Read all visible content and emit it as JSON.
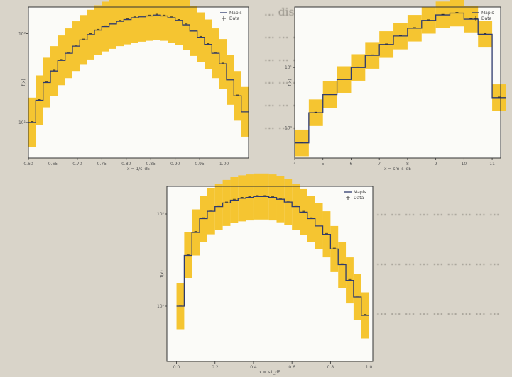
{
  "background_text": {
    "lines": [
      "... distributions.",
      "... ... ... ... ... ... ... ... ...",
      "... ... ... ... ... ... ... ... ...",
      "... ... ... ... ... ... ... ... ...",
      "... ... ... ... ... ... ... ... ...",
      "... ... ... ... ... ... ... ... ...",
      "... ... ... ... ... ... ... ... ...",
      "... ... ... ... ... ... ... ... ...",
      "... ... ... ... ... ... ... ... ..."
    ]
  },
  "colors": {
    "band": "#f5c531",
    "mc_line": "#2e3a6e",
    "frame_bg": "#fbfbf8"
  },
  "chart_data": [
    {
      "type": "line",
      "title": "",
      "xlabel": "x = 1/s_dE",
      "ylabel": "f(x)",
      "xlim": [
        0.6,
        1.05
      ],
      "yscale": "log",
      "ylim_log10": [
        0.6,
        2.3
      ],
      "xticks": [
        "0.60",
        "0.65",
        "0.70",
        "0.75",
        "0.80",
        "0.85",
        "0.90",
        "0.95",
        "1.00"
      ],
      "yticks": [
        "10¹",
        "10²"
      ],
      "legend": [
        "Mapis",
        "Data"
      ],
      "legend_position": "top-right",
      "series": [
        {
          "name": "Mapis",
          "x": [
            0.6,
            0.615,
            0.63,
            0.645,
            0.66,
            0.675,
            0.69,
            0.705,
            0.72,
            0.735,
            0.75,
            0.765,
            0.78,
            0.795,
            0.81,
            0.825,
            0.84,
            0.855,
            0.87,
            0.885,
            0.9,
            0.915,
            0.93,
            0.945,
            0.96,
            0.975,
            0.99,
            1.005,
            1.02,
            1.035
          ],
          "y_log10": [
            1.0,
            1.25,
            1.45,
            1.58,
            1.7,
            1.78,
            1.86,
            1.93,
            1.99,
            2.04,
            2.08,
            2.11,
            2.14,
            2.16,
            2.18,
            2.19,
            2.2,
            2.21,
            2.2,
            2.18,
            2.15,
            2.1,
            2.03,
            1.96,
            1.88,
            1.78,
            1.66,
            1.48,
            1.3,
            1.12
          ]
        }
      ]
    },
    {
      "type": "line",
      "title": "",
      "xlabel": "x = sm_s_dE",
      "ylabel": "f(x)",
      "xlim": [
        4,
        11.3
      ],
      "yscale": "log",
      "ylim_log10": [
        -0.5,
        2.0
      ],
      "xticks": [
        "4",
        "5",
        "6",
        "7",
        "8",
        "9",
        "10",
        "11"
      ],
      "yticks": [
        "10⁰",
        "10¹"
      ],
      "legend": [
        "Mapis",
        "Data"
      ],
      "legend_position": "top-right",
      "series": [
        {
          "name": "Mapis",
          "x": [
            4.0,
            4.5,
            5.0,
            5.5,
            6.0,
            6.5,
            7.0,
            7.5,
            8.0,
            8.5,
            9.0,
            9.5,
            10.0,
            10.5,
            11.0
          ],
          "y_log10": [
            -0.25,
            0.25,
            0.55,
            0.8,
            1.0,
            1.2,
            1.38,
            1.52,
            1.65,
            1.78,
            1.87,
            1.9,
            1.8,
            1.55,
            0.5
          ]
        }
      ]
    },
    {
      "type": "line",
      "title": "",
      "xlabel": "x = s1_dE",
      "ylabel": "f(x)",
      "xlim": [
        -0.05,
        1.02
      ],
      "yscale": "log",
      "ylim_log10": [
        0.4,
        2.3
      ],
      "xticks": [
        "0.0",
        "0.2",
        "0.4",
        "0.6",
        "0.8",
        "1.0"
      ],
      "yticks": [
        "10¹",
        "10²"
      ],
      "legend": [
        "Mapis",
        "Data"
      ],
      "legend_position": "top-right",
      "series": [
        {
          "name": "Mapis",
          "x": [
            0.0,
            0.04,
            0.08,
            0.12,
            0.16,
            0.2,
            0.24,
            0.28,
            0.32,
            0.36,
            0.4,
            0.44,
            0.48,
            0.52,
            0.56,
            0.6,
            0.64,
            0.68,
            0.72,
            0.76,
            0.8,
            0.84,
            0.88,
            0.92,
            0.96
          ],
          "y_log10": [
            1.0,
            1.55,
            1.8,
            1.95,
            2.03,
            2.08,
            2.12,
            2.15,
            2.17,
            2.18,
            2.19,
            2.19,
            2.18,
            2.16,
            2.13,
            2.08,
            2.02,
            1.95,
            1.87,
            1.78,
            1.62,
            1.45,
            1.28,
            1.1,
            0.9
          ]
        }
      ]
    }
  ]
}
